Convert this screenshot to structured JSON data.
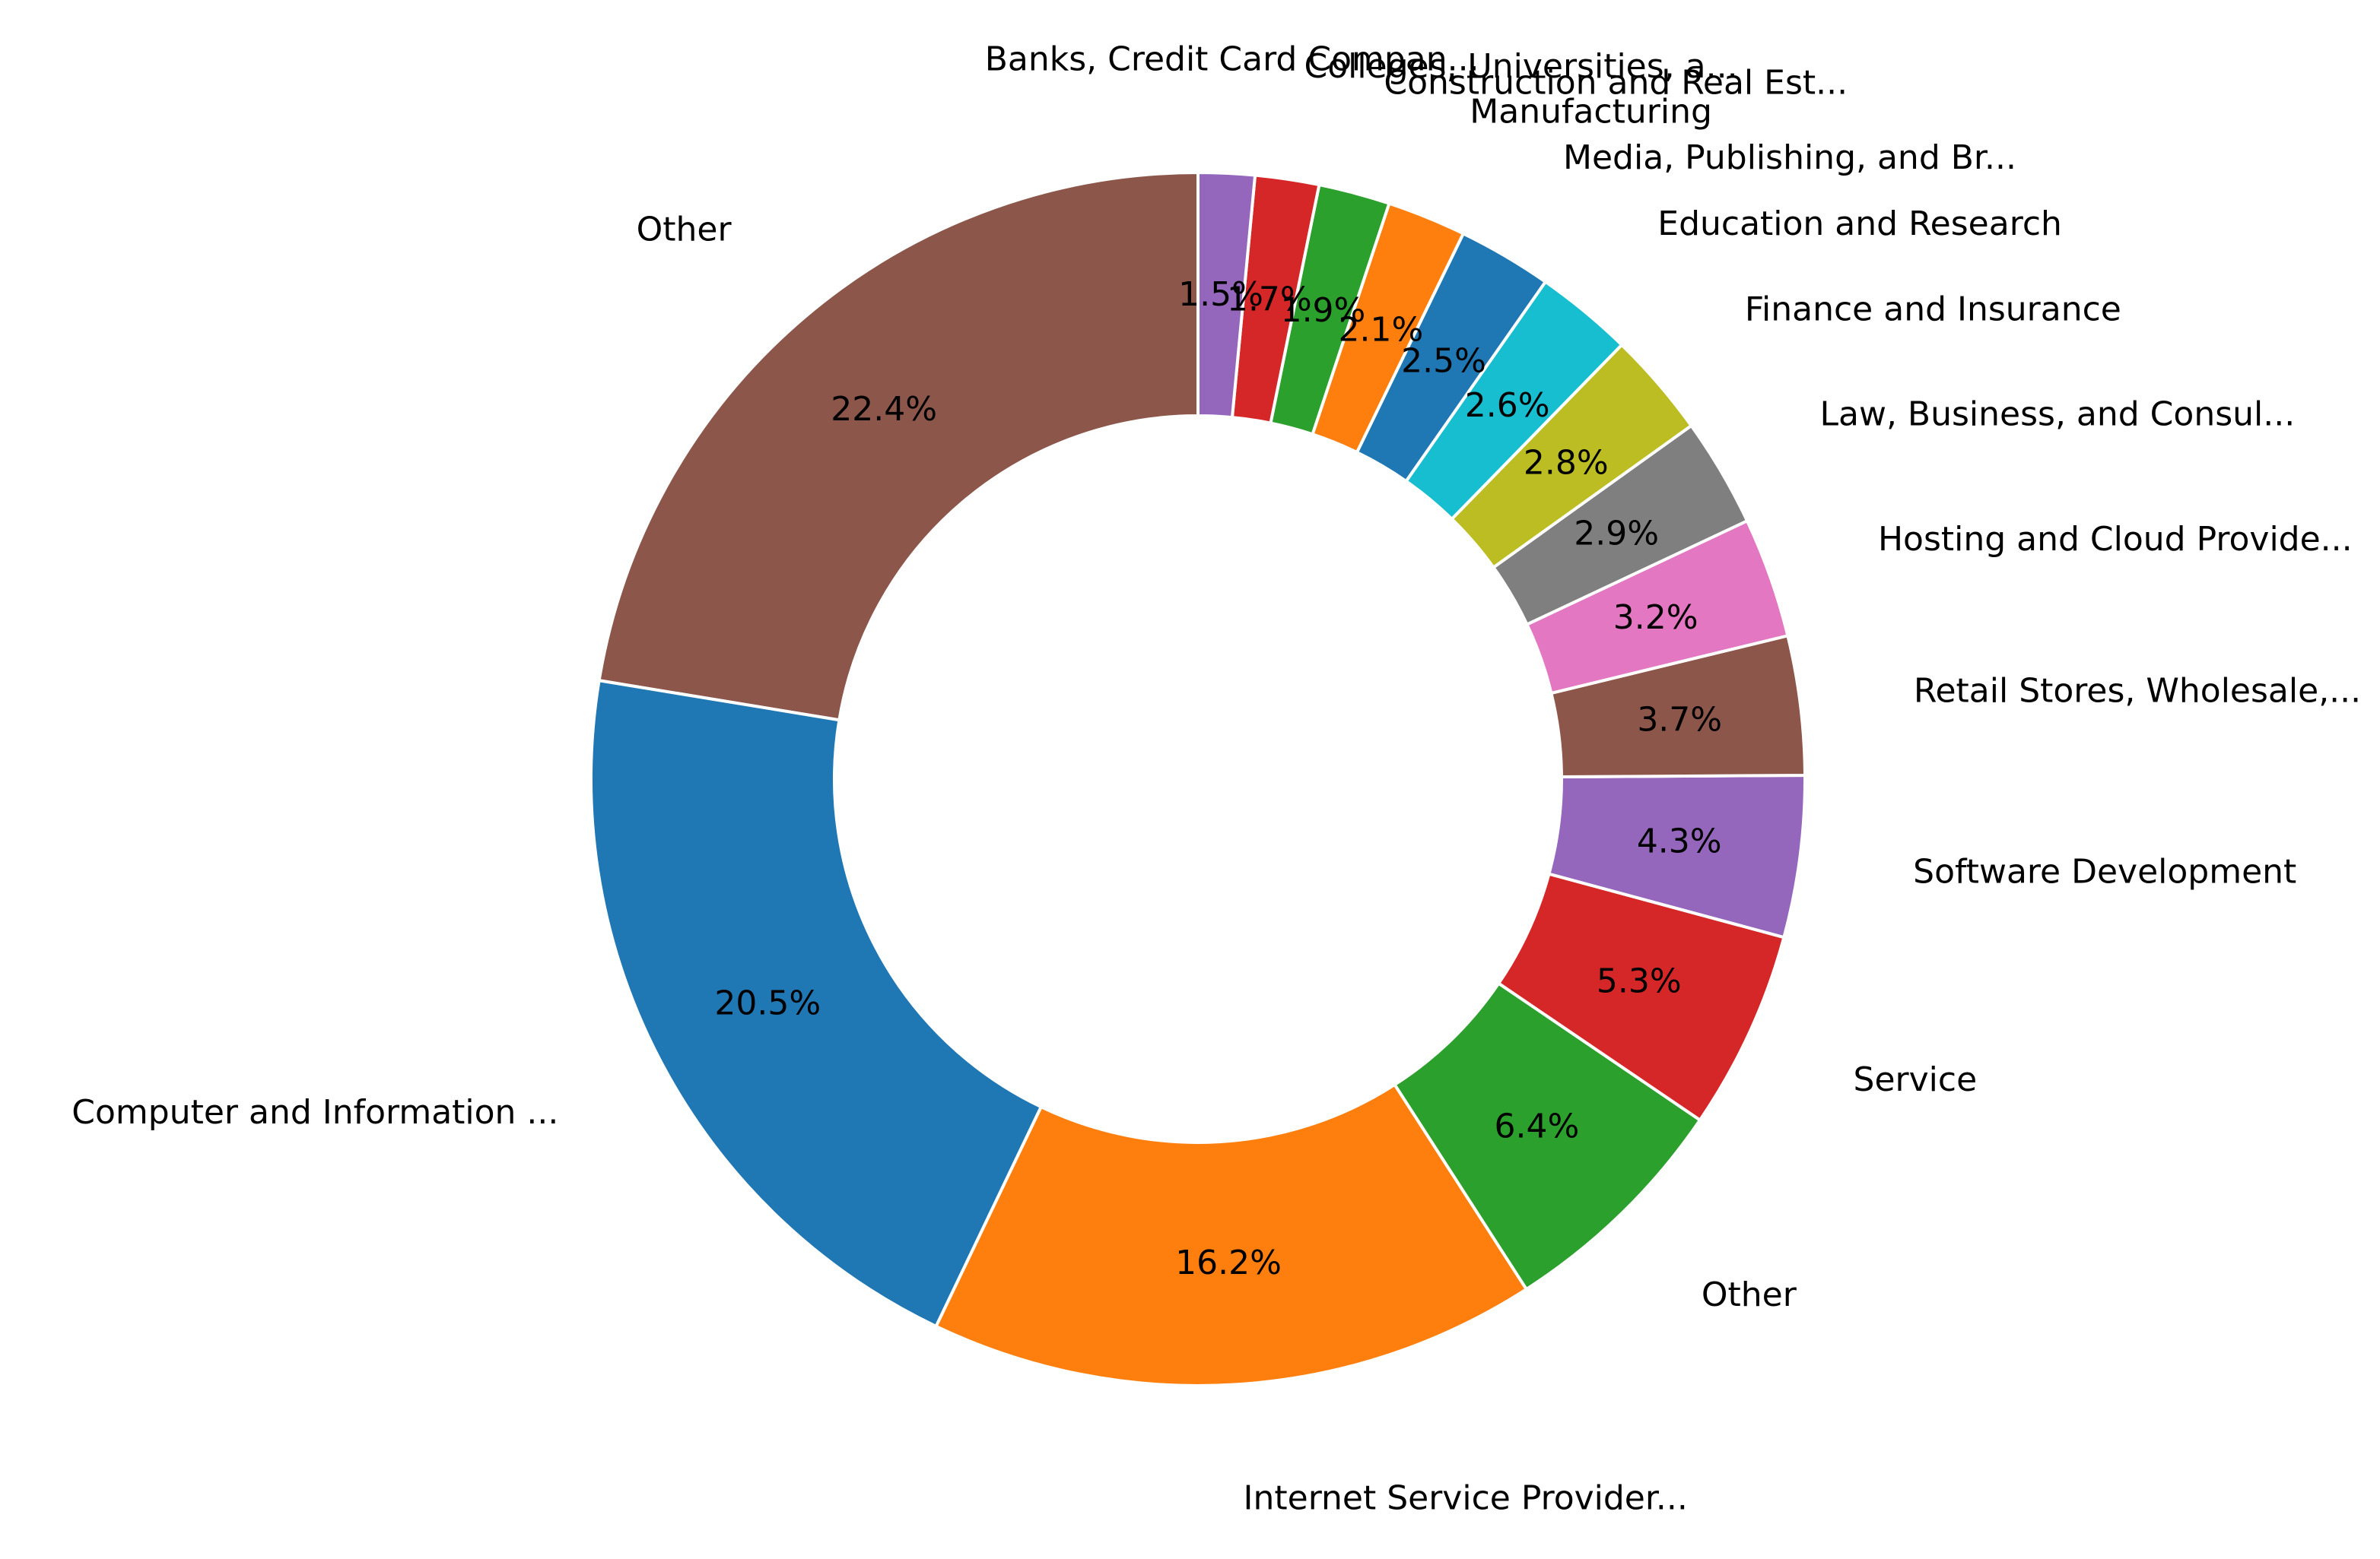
{
  "chart_data": {
    "type": "pie",
    "donut": true,
    "start_angle_deg": 90,
    "direction": "counterclockwise",
    "slices": [
      {
        "label": "Other",
        "value": 22.4,
        "pct_label": "22.4%",
        "color": "#8c564b"
      },
      {
        "label": "Computer and Information ...",
        "value": 20.5,
        "pct_label": "20.5%",
        "color": "#1f77b4"
      },
      {
        "label": "Internet Service Provider...",
        "value": 16.2,
        "pct_label": "16.2%",
        "color": "#ff7f0e"
      },
      {
        "label": "Other",
        "value": 6.4,
        "pct_label": "6.4%",
        "color": "#2ca02c"
      },
      {
        "label": "Service",
        "value": 5.3,
        "pct_label": "5.3%",
        "color": "#d62728"
      },
      {
        "label": "Software Development",
        "value": 4.3,
        "pct_label": "4.3%",
        "color": "#9467bd"
      },
      {
        "label": "Retail Stores, Wholesale,...",
        "value": 3.7,
        "pct_label": "3.7%",
        "color": "#8c564b"
      },
      {
        "label": "Hosting and Cloud Provide...",
        "value": 3.2,
        "pct_label": "3.2%",
        "color": "#e377c2"
      },
      {
        "label": "Law, Business, and Consul...",
        "value": 2.9,
        "pct_label": "2.9%",
        "color": "#7f7f7f"
      },
      {
        "label": "Finance and Insurance",
        "value": 2.8,
        "pct_label": "2.8%",
        "color": "#bcbd22"
      },
      {
        "label": "Education and Research",
        "value": 2.6,
        "pct_label": "2.6%",
        "color": "#17becf"
      },
      {
        "label": "Media, Publishing, and Br...",
        "value": 2.5,
        "pct_label": "2.5%",
        "color": "#1f77b4"
      },
      {
        "label": "Manufacturing",
        "value": 2.1,
        "pct_label": "2.1%",
        "color": "#ff7f0e"
      },
      {
        "label": "Construction and Real Est...",
        "value": 1.9,
        "pct_label": "1.9%",
        "color": "#2ca02c"
      },
      {
        "label": "Colleges, Universities, a...",
        "value": 1.7,
        "pct_label": "1.7%",
        "color": "#d62728"
      },
      {
        "label": "Banks, Credit Card Compan...",
        "value": 1.5,
        "pct_label": "1.5%",
        "color": "#9467bd"
      }
    ]
  }
}
